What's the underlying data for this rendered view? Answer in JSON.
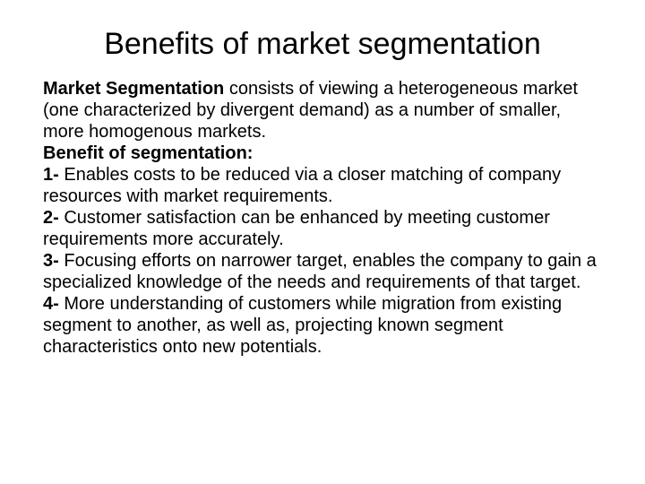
{
  "title": "Benefits of market segmentation",
  "intro": {
    "lead": "Market Segmentation",
    "text": " consists of viewing a heterogeneous market (one characterized by divergent demand) as a number of smaller, more homogenous markets."
  },
  "subheading": "Benefit of segmentation:",
  "items": [
    {
      "num": "1-",
      "text": " Enables costs to be reduced via a closer matching of company resources with market requirements."
    },
    {
      "num": "2-",
      "text": " Customer satisfaction can be enhanced by meeting customer requirements more accurately."
    },
    {
      "num": "3-",
      "text": " Focusing efforts on narrower target, enables the company to gain a specialized knowledge of the needs and requirements of that target."
    },
    {
      "num": "4-",
      "text": " More understanding of customers while migration from existing segment to another, as well as, projecting known segment characteristics onto new potentials."
    }
  ],
  "colors": {
    "background": "#ffffff",
    "text": "#000000"
  },
  "typography": {
    "title_fontsize": 34,
    "body_fontsize": 20,
    "font_family": "Arial"
  }
}
